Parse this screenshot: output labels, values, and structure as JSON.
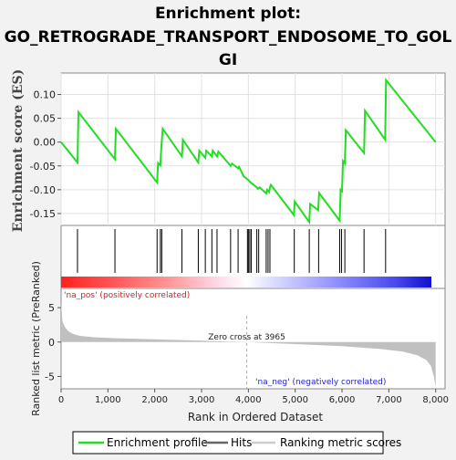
{
  "chart_data": {
    "type": "line",
    "title_line1": "Enrichment plot:",
    "title_line2": "GO_RETROGRADE_TRANSPORT_ENDOSOME_TO_GOL",
    "title_line3": "GI",
    "es_ylabel": "Enrichment score (ES)",
    "es_yticks": [
      0.1,
      0.05,
      0.0,
      -0.05,
      -0.1,
      -0.15
    ],
    "es_ytick_labels": [
      "0.10",
      "0.05",
      "0.00",
      "-0.05",
      "-0.10",
      "-0.15"
    ],
    "es_ylim": [
      -0.175,
      0.145
    ],
    "xlim": [
      0,
      8200
    ],
    "xlabel": "Rank in Ordered Dataset",
    "xticks": [
      0,
      1000,
      2000,
      3000,
      4000,
      5000,
      6000,
      7000,
      8000
    ],
    "xtick_labels": [
      "0",
      "1,000",
      "2,000",
      "3,000",
      "4,000",
      "5,000",
      "6,000",
      "7,000",
      "8,000"
    ],
    "enrichment_profile": [
      [
        0,
        0.0
      ],
      [
        350,
        -0.043
      ],
      [
        370,
        0.063
      ],
      [
        1150,
        -0.036
      ],
      [
        1170,
        0.028
      ],
      [
        2050,
        -0.085
      ],
      [
        2070,
        -0.044
      ],
      [
        2120,
        -0.049
      ],
      [
        2140,
        -0.012
      ],
      [
        2170,
        0.028
      ],
      [
        2580,
        -0.03
      ],
      [
        2600,
        0.005
      ],
      [
        2930,
        -0.043
      ],
      [
        2950,
        -0.018
      ],
      [
        3080,
        -0.033
      ],
      [
        3100,
        -0.018
      ],
      [
        3220,
        -0.03
      ],
      [
        3240,
        -0.018
      ],
      [
        3330,
        -0.03
      ],
      [
        3360,
        -0.02
      ],
      [
        3620,
        -0.05
      ],
      [
        3650,
        -0.045
      ],
      [
        3780,
        -0.055
      ],
      [
        3800,
        -0.052
      ],
      [
        3900,
        -0.072
      ],
      [
        4000,
        -0.08
      ],
      [
        4050,
        -0.085
      ],
      [
        4180,
        -0.095
      ],
      [
        4200,
        -0.098
      ],
      [
        4240,
        -0.095
      ],
      [
        4380,
        -0.108
      ],
      [
        4400,
        -0.1
      ],
      [
        4440,
        -0.105
      ],
      [
        4460,
        -0.095
      ],
      [
        4480,
        -0.09
      ],
      [
        4970,
        -0.153
      ],
      [
        4990,
        -0.125
      ],
      [
        5300,
        -0.168
      ],
      [
        5320,
        -0.13
      ],
      [
        5490,
        -0.143
      ],
      [
        5510,
        -0.107
      ],
      [
        5950,
        -0.165
      ],
      [
        5970,
        -0.1
      ],
      [
        6000,
        -0.103
      ],
      [
        6020,
        -0.04
      ],
      [
        6060,
        -0.045
      ],
      [
        6080,
        0.025
      ],
      [
        6470,
        -0.023
      ],
      [
        6490,
        0.066
      ],
      [
        6920,
        0.005
      ],
      [
        6940,
        0.13
      ],
      [
        8000,
        0.0
      ]
    ],
    "hits": [
      350,
      1150,
      2050,
      2120,
      2150,
      2580,
      2930,
      3080,
      3220,
      3330,
      3620,
      3780,
      3980,
      4000,
      4030,
      4060,
      4180,
      4220,
      4380,
      4420,
      4460,
      4980,
      5300,
      5500,
      5950,
      5990,
      6060,
      6470,
      6930
    ],
    "metric_ylabel": "Ranked list metric (PreRanked)",
    "metric_yticks": [
      5,
      0,
      -5
    ],
    "metric_ytick_labels": [
      "5",
      "0",
      "-5"
    ],
    "metric_ylim": [
      -6.8,
      7.8
    ],
    "metric_curve": [
      [
        0,
        5.8
      ],
      [
        30,
        3.0
      ],
      [
        80,
        2.2
      ],
      [
        150,
        1.6
      ],
      [
        250,
        1.2
      ],
      [
        400,
        0.9
      ],
      [
        700,
        0.7
      ],
      [
        1200,
        0.55
      ],
      [
        2000,
        0.4
      ],
      [
        3000,
        0.2
      ],
      [
        3965,
        0.0
      ],
      [
        5000,
        -0.3
      ],
      [
        6000,
        -0.6
      ],
      [
        6800,
        -1.0
      ],
      [
        7300,
        -1.4
      ],
      [
        7600,
        -1.9
      ],
      [
        7800,
        -2.6
      ],
      [
        7900,
        -3.5
      ],
      [
        7960,
        -5.0
      ],
      [
        8000,
        -6.6
      ]
    ],
    "zero_cross_label": "Zero cross at 3965",
    "zero_cross_x": 3965,
    "pos_label": "'na_pos' (positively correlated)",
    "neg_label": "'na_neg' (negatively correlated)",
    "legend_entries": [
      "Enrichment profile",
      "Hits",
      "Ranking metric scores"
    ],
    "colors": {
      "profile": "#22dd22",
      "hits": "#000000",
      "metric": "#c0c0c0",
      "pos_strong": "#ff2020",
      "neutral": "#ffffff",
      "neg_strong": "#1010d0",
      "zero_line": "#aaaaaa"
    }
  }
}
